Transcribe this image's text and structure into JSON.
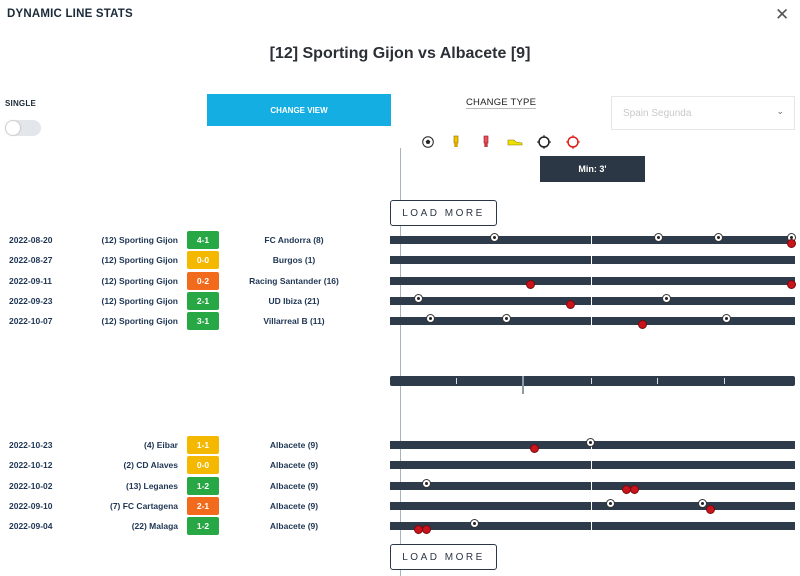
{
  "header": {
    "title": "DYNAMIC LINE STATS",
    "close_icon": "close-icon"
  },
  "match_title": "[12] Sporting Gijon vs Albacete [9]",
  "controls": {
    "single_label": "SINGLE",
    "single_on": false,
    "change_view_label": "CHANGE VIEW",
    "change_type_label": "CHANGE TYPE",
    "league_placeholder": "Spain Segunda",
    "type_icons": [
      "soccer-ball-icon",
      "yellow-card-icon",
      "red-card-icon",
      "shoe-icon",
      "target-icon",
      "red-target-icon"
    ]
  },
  "minute_label": "Min: 3'",
  "load_more_label": "LOAD MORE",
  "home_matches": [
    {
      "date": "2022-08-20",
      "home": "(12) Sporting Gijon",
      "score": "4-1",
      "result": "win",
      "away": "FC Andorra (8)",
      "events": [
        {
          "type": "ball",
          "minute": 26
        },
        {
          "type": "ball",
          "minute": 67
        },
        {
          "type": "ball",
          "minute": 82
        },
        {
          "type": "ball",
          "minute": 101
        },
        {
          "type": "red",
          "minute": 101
        }
      ]
    },
    {
      "date": "2022-08-27",
      "home": "(12) Sporting Gijon",
      "score": "0-0",
      "result": "draw",
      "away": "Burgos (1)",
      "events": []
    },
    {
      "date": "2022-09-11",
      "home": "(12) Sporting Gijon",
      "score": "0-2",
      "result": "loss",
      "away": "Racing Santander (16)",
      "events": [
        {
          "type": "red",
          "minute": 35
        },
        {
          "type": "red",
          "minute": 101
        }
      ]
    },
    {
      "date": "2022-09-23",
      "home": "(12) Sporting Gijon",
      "score": "2-1",
      "result": "win",
      "away": "UD Ibiza (21)",
      "events": [
        {
          "type": "ball",
          "minute": 7
        },
        {
          "type": "red",
          "minute": 45
        },
        {
          "type": "ball",
          "minute": 69
        }
      ]
    },
    {
      "date": "2022-10-07",
      "home": "(12) Sporting Gijon",
      "score": "3-1",
      "result": "win",
      "away": "Villarreal B (11)",
      "events": [
        {
          "type": "ball",
          "minute": 10
        },
        {
          "type": "ball",
          "minute": 29
        },
        {
          "type": "red",
          "minute": 63
        },
        {
          "type": "ball",
          "minute": 84
        }
      ]
    }
  ],
  "away_matches": [
    {
      "date": "2022-10-23",
      "home": "(4) Eibar",
      "score": "1-1",
      "result": "draw",
      "away": "Albacete (9)",
      "events": [
        {
          "type": "red",
          "minute": 36
        },
        {
          "type": "ball",
          "minute": 50
        }
      ]
    },
    {
      "date": "2022-10-12",
      "home": "(2) CD Alaves",
      "score": "0-0",
      "result": "draw",
      "away": "Albacete (9)",
      "events": []
    },
    {
      "date": "2022-10-02",
      "home": "(13) Leganes",
      "score": "1-2",
      "result": "win",
      "away": "Albacete (9)",
      "events": [
        {
          "type": "ball",
          "minute": 9
        },
        {
          "type": "red",
          "minute": 59
        },
        {
          "type": "red",
          "minute": 61
        }
      ]
    },
    {
      "date": "2022-09-10",
      "home": "(7) FC Cartagena",
      "score": "2-1",
      "result": "loss",
      "away": "Albacete (9)",
      "events": [
        {
          "type": "ball",
          "minute": 55
        },
        {
          "type": "ball",
          "minute": 78
        },
        {
          "type": "red",
          "minute": 80
        }
      ]
    },
    {
      "date": "2022-09-04",
      "home": "(22) Malaga",
      "score": "1-2",
      "result": "win",
      "away": "Albacete (9)",
      "events": [
        {
          "type": "red",
          "minute": 7
        },
        {
          "type": "red",
          "minute": 9
        },
        {
          "type": "ball",
          "minute": 21
        }
      ]
    }
  ],
  "timeline_max_minute": 101,
  "timeline_current_minute": 33,
  "colors": {
    "win": "#28a745",
    "draw": "#f5b800",
    "loss": "#f26b1d",
    "accent": "#15aee3",
    "bar": "#2e3b4a"
  }
}
